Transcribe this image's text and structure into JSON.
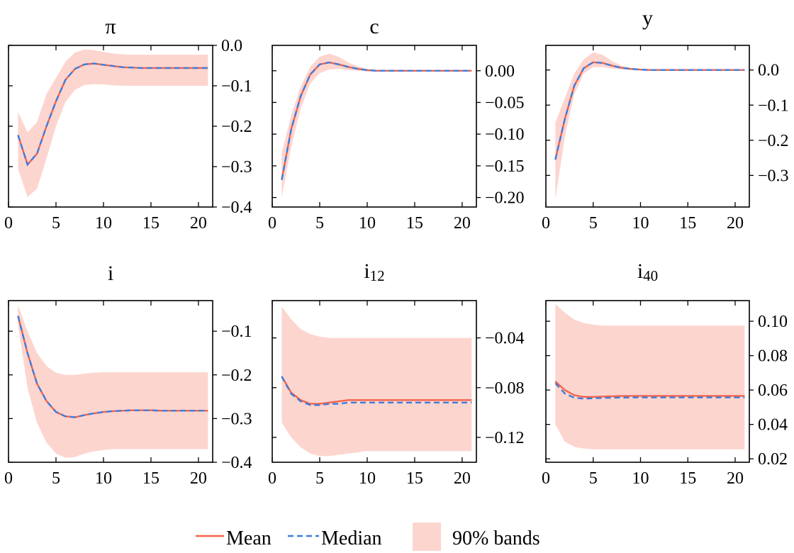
{
  "legend": {
    "mean_label": "Mean",
    "median_label": "Median",
    "band_label": "90% bands"
  },
  "colors": {
    "mean": "#F4634A",
    "median": "#3B7DDD",
    "band": "#FDD5CF"
  },
  "chart_data": [
    {
      "type": "line",
      "title": "π",
      "title_sub": "",
      "x": [
        1,
        2,
        3,
        4,
        5,
        6,
        7,
        8,
        9,
        10,
        11,
        12,
        13,
        14,
        15,
        16,
        17,
        18,
        19,
        20,
        21
      ],
      "xlim": [
        0,
        21.5
      ],
      "ylim": [
        -0.4,
        0.0
      ],
      "xticks": [
        "0",
        "5",
        "10",
        "15",
        "20"
      ],
      "yticks": [
        "0.0",
        "−0.1",
        "−0.2",
        "−0.3",
        "−0.4"
      ],
      "series": [
        {
          "name": "Mean",
          "values": [
            -0.222,
            -0.295,
            -0.268,
            -0.2,
            -0.138,
            -0.085,
            -0.058,
            -0.047,
            -0.045,
            -0.048,
            -0.051,
            -0.054,
            -0.055,
            -0.056,
            -0.056,
            -0.056,
            -0.056,
            -0.056,
            -0.056,
            -0.056,
            -0.056
          ]
        },
        {
          "name": "Median",
          "values": [
            -0.222,
            -0.295,
            -0.268,
            -0.2,
            -0.138,
            -0.085,
            -0.058,
            -0.047,
            -0.045,
            -0.048,
            -0.051,
            -0.054,
            -0.055,
            -0.056,
            -0.056,
            -0.056,
            -0.056,
            -0.056,
            -0.056,
            -0.056,
            -0.056
          ]
        },
        {
          "name": "90% bands",
          "lower": [
            -0.305,
            -0.375,
            -0.355,
            -0.28,
            -0.2,
            -0.14,
            -0.11,
            -0.098,
            -0.096,
            -0.097,
            -0.099,
            -0.1,
            -0.1,
            -0.1,
            -0.1,
            -0.1,
            -0.1,
            -0.1,
            -0.1,
            -0.1,
            -0.1
          ],
          "upper": [
            -0.165,
            -0.215,
            -0.19,
            -0.12,
            -0.08,
            -0.04,
            -0.018,
            -0.01,
            -0.012,
            -0.016,
            -0.02,
            -0.022,
            -0.023,
            -0.023,
            -0.023,
            -0.023,
            -0.023,
            -0.023,
            -0.023,
            -0.023,
            -0.023
          ]
        }
      ]
    },
    {
      "type": "line",
      "title": "c",
      "title_sub": "",
      "x": [
        1,
        2,
        3,
        4,
        5,
        6,
        7,
        8,
        9,
        10,
        11,
        12,
        13,
        14,
        15,
        16,
        17,
        18,
        19,
        20,
        21
      ],
      "xlim": [
        0,
        21.5
      ],
      "ylim": [
        -0.215,
        0.04
      ],
      "xticks": [
        "0",
        "5",
        "10",
        "15",
        "20"
      ],
      "yticks": [
        "0.00",
        "−0.05",
        "−0.10",
        "−0.15",
        "−0.20"
      ],
      "series": [
        {
          "name": "Mean",
          "values": [
            -0.172,
            -0.092,
            -0.04,
            -0.006,
            0.01,
            0.013,
            0.01,
            0.006,
            0.003,
            0.001,
            0.0,
            0.0,
            0.0,
            0.0,
            0.0,
            0.0,
            0.0,
            0.0,
            0.0,
            0.0,
            0.0
          ]
        },
        {
          "name": "Median",
          "values": [
            -0.172,
            -0.092,
            -0.04,
            -0.006,
            0.01,
            0.013,
            0.01,
            0.006,
            0.003,
            0.001,
            0.0,
            0.0,
            0.0,
            0.0,
            0.0,
            0.0,
            0.0,
            0.0,
            0.0,
            0.0,
            0.0
          ]
        },
        {
          "name": "90% bands",
          "lower": [
            -0.2,
            -0.12,
            -0.06,
            -0.02,
            -0.004,
            0.002,
            0.003,
            0.001,
            0.0,
            -0.001,
            -0.001,
            -0.001,
            -0.001,
            -0.001,
            -0.001,
            -0.001,
            -0.001,
            -0.001,
            -0.001,
            -0.001,
            -0.001
          ],
          "upper": [
            -0.13,
            -0.07,
            -0.025,
            0.006,
            0.022,
            0.027,
            0.022,
            0.013,
            0.007,
            0.003,
            0.001,
            0.001,
            0.001,
            0.001,
            0.001,
            0.001,
            0.001,
            0.001,
            0.001,
            0.001,
            0.001
          ]
        }
      ]
    },
    {
      "type": "line",
      "title": "y",
      "title_sub": "",
      "x": [
        1,
        2,
        3,
        4,
        5,
        6,
        7,
        8,
        9,
        10,
        11,
        12,
        13,
        14,
        15,
        16,
        17,
        18,
        19,
        20,
        21
      ],
      "xlim": [
        0,
        21.5
      ],
      "ylim": [
        -0.39,
        0.07
      ],
      "xticks": [
        "0",
        "5",
        "10",
        "15",
        "20"
      ],
      "yticks": [
        "0.0",
        "−0.1",
        "−0.2",
        "−0.3"
      ],
      "series": [
        {
          "name": "Mean",
          "values": [
            -0.255,
            -0.14,
            -0.045,
            0.005,
            0.022,
            0.02,
            0.012,
            0.006,
            0.003,
            0.001,
            0.0,
            0.0,
            0.0,
            0.0,
            0.0,
            0.0,
            0.0,
            0.0,
            0.0,
            0.0,
            0.0
          ]
        },
        {
          "name": "Median",
          "values": [
            -0.255,
            -0.14,
            -0.045,
            0.005,
            0.022,
            0.02,
            0.012,
            0.006,
            0.003,
            0.001,
            0.0,
            0.0,
            0.0,
            0.0,
            0.0,
            0.0,
            0.0,
            0.0,
            0.0,
            0.0,
            0.0
          ]
        },
        {
          "name": "90% bands",
          "lower": [
            -0.37,
            -0.19,
            -0.07,
            -0.01,
            0.008,
            0.008,
            0.004,
            0.002,
            0.0,
            -0.001,
            -0.002,
            -0.002,
            -0.002,
            -0.002,
            -0.002,
            -0.002,
            -0.002,
            -0.002,
            -0.002,
            -0.002,
            -0.002
          ],
          "upper": [
            -0.15,
            -0.08,
            -0.01,
            0.03,
            0.05,
            0.043,
            0.025,
            0.012,
            0.006,
            0.003,
            0.002,
            0.002,
            0.002,
            0.002,
            0.002,
            0.002,
            0.002,
            0.002,
            0.002,
            0.002,
            0.002
          ]
        }
      ]
    },
    {
      "type": "line",
      "title": "i",
      "title_sub": "",
      "x": [
        1,
        2,
        3,
        4,
        5,
        6,
        7,
        8,
        9,
        10,
        11,
        12,
        13,
        14,
        15,
        16,
        17,
        18,
        19,
        20,
        21
      ],
      "xlim": [
        0,
        21.5
      ],
      "ylim": [
        -0.4,
        -0.03
      ],
      "xticks": [
        "0",
        "5",
        "10",
        "15",
        "20"
      ],
      "yticks": [
        "−0.1",
        "−0.2",
        "−0.3",
        "−0.4"
      ],
      "series": [
        {
          "name": "Mean",
          "values": [
            -0.065,
            -0.15,
            -0.22,
            -0.26,
            -0.285,
            -0.295,
            -0.297,
            -0.292,
            -0.288,
            -0.285,
            -0.283,
            -0.282,
            -0.281,
            -0.281,
            -0.281,
            -0.282,
            -0.282,
            -0.282,
            -0.282,
            -0.282,
            -0.282
          ]
        },
        {
          "name": "Median",
          "values": [
            -0.065,
            -0.15,
            -0.22,
            -0.26,
            -0.285,
            -0.295,
            -0.297,
            -0.292,
            -0.288,
            -0.285,
            -0.283,
            -0.282,
            -0.281,
            -0.281,
            -0.281,
            -0.282,
            -0.282,
            -0.282,
            -0.282,
            -0.282,
            -0.282
          ]
        },
        {
          "name": "90% bands",
          "lower": [
            -0.085,
            -0.23,
            -0.31,
            -0.355,
            -0.38,
            -0.39,
            -0.388,
            -0.38,
            -0.375,
            -0.372,
            -0.37,
            -0.37,
            -0.37,
            -0.37,
            -0.37,
            -0.37,
            -0.37,
            -0.37,
            -0.37,
            -0.37,
            -0.37
          ],
          "upper": [
            -0.04,
            -0.1,
            -0.15,
            -0.18,
            -0.195,
            -0.2,
            -0.2,
            -0.197,
            -0.195,
            -0.194,
            -0.194,
            -0.194,
            -0.194,
            -0.194,
            -0.194,
            -0.194,
            -0.194,
            -0.194,
            -0.194,
            -0.194,
            -0.194
          ]
        }
      ]
    },
    {
      "type": "line",
      "title": "i",
      "title_sub": "12",
      "x": [
        1,
        2,
        3,
        4,
        5,
        6,
        7,
        8,
        9,
        10,
        11,
        12,
        13,
        14,
        15,
        16,
        17,
        18,
        19,
        20,
        21
      ],
      "xlim": [
        0,
        21.5
      ],
      "ylim": [
        -0.14,
        -0.01
      ],
      "xticks": [
        "0",
        "5",
        "10",
        "15",
        "20"
      ],
      "yticks": [
        "−0.04",
        "−0.08",
        "−0.12"
      ],
      "series": [
        {
          "name": "Mean",
          "values": [
            -0.071,
            -0.084,
            -0.09,
            -0.093,
            -0.093,
            -0.092,
            -0.091,
            -0.09,
            -0.09,
            -0.09,
            -0.09,
            -0.09,
            -0.09,
            -0.09,
            -0.09,
            -0.09,
            -0.09,
            -0.09,
            -0.09,
            -0.09,
            -0.09
          ]
        },
        {
          "name": "Median",
          "values": [
            -0.071,
            -0.085,
            -0.091,
            -0.094,
            -0.094,
            -0.093,
            -0.093,
            -0.092,
            -0.092,
            -0.092,
            -0.092,
            -0.092,
            -0.092,
            -0.092,
            -0.092,
            -0.092,
            -0.092,
            -0.092,
            -0.092,
            -0.092,
            -0.092
          ]
        },
        {
          "name": "90% bands",
          "lower": [
            -0.108,
            -0.12,
            -0.128,
            -0.133,
            -0.135,
            -0.135,
            -0.134,
            -0.133,
            -0.132,
            -0.131,
            -0.131,
            -0.131,
            -0.131,
            -0.131,
            -0.131,
            -0.131,
            -0.131,
            -0.131,
            -0.131,
            -0.131,
            -0.131
          ],
          "upper": [
            -0.015,
            -0.025,
            -0.033,
            -0.037,
            -0.039,
            -0.04,
            -0.04,
            -0.04,
            -0.04,
            -0.04,
            -0.04,
            -0.04,
            -0.04,
            -0.04,
            -0.04,
            -0.04,
            -0.04,
            -0.04,
            -0.04,
            -0.04,
            -0.04
          ]
        }
      ]
    },
    {
      "type": "line",
      "title": "i",
      "title_sub": "40",
      "x": [
        1,
        2,
        3,
        4,
        5,
        6,
        7,
        8,
        9,
        10,
        11,
        12,
        13,
        14,
        15,
        16,
        17,
        18,
        19,
        20,
        21
      ],
      "xlim": [
        0,
        21.5
      ],
      "ylim": [
        0.018,
        0.112
      ],
      "xticks": [
        "0",
        "5",
        "10",
        "15",
        "20"
      ],
      "yticks": [
        "0.10",
        "0.08",
        "0.06",
        "0.04",
        "0.02"
      ],
      "series": [
        {
          "name": "Mean",
          "values": [
            0.065,
            0.06,
            0.057,
            0.056,
            0.056,
            0.0562,
            0.0564,
            0.0565,
            0.0566,
            0.0566,
            0.0566,
            0.0566,
            0.0566,
            0.0566,
            0.0566,
            0.0566,
            0.0566,
            0.0566,
            0.0566,
            0.0566,
            0.0566
          ]
        },
        {
          "name": "Median",
          "values": [
            0.064,
            0.058,
            0.0555,
            0.055,
            0.0552,
            0.0554,
            0.0555,
            0.0556,
            0.0557,
            0.0557,
            0.0557,
            0.0557,
            0.0557,
            0.0557,
            0.0557,
            0.0557,
            0.0557,
            0.0557,
            0.0557,
            0.0557,
            0.0557
          ]
        },
        {
          "name": "90% bands",
          "lower": [
            0.04,
            0.03,
            0.027,
            0.026,
            0.0255,
            0.0255,
            0.0255,
            0.0255,
            0.0255,
            0.0255,
            0.0255,
            0.0255,
            0.0255,
            0.0255,
            0.0255,
            0.0255,
            0.0255,
            0.0255,
            0.0255,
            0.0255,
            0.0255
          ],
          "upper": [
            0.11,
            0.105,
            0.101,
            0.099,
            0.098,
            0.0975,
            0.0975,
            0.0975,
            0.0975,
            0.0975,
            0.0975,
            0.0975,
            0.0975,
            0.0975,
            0.0975,
            0.0975,
            0.0975,
            0.0975,
            0.0975,
            0.0975,
            0.0975
          ]
        }
      ]
    }
  ]
}
